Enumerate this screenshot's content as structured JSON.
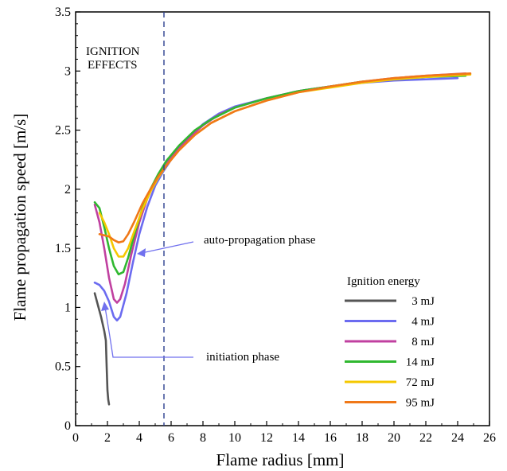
{
  "chart_data": {
    "type": "line",
    "xlabel": "Flame radius [mm]",
    "ylabel": "Flame propagation speed [m/s]",
    "xlim": [
      0,
      26
    ],
    "ylim": [
      0,
      3.5
    ],
    "xticks": [
      "0",
      "2",
      "4",
      "6",
      "8",
      "10",
      "12",
      "14",
      "16",
      "18",
      "20",
      "22",
      "24",
      "26"
    ],
    "yticks": [
      "0",
      "0.5",
      "1",
      "1.5",
      "2",
      "2.5",
      "3",
      "3.5"
    ],
    "grid": false,
    "legend": {
      "title": "Ignition energy",
      "placement": "bottom-right"
    },
    "annotations": {
      "ignition_label_1": "IGNITION",
      "ignition_label_2": "EFFECTS",
      "ignition_line_x": 5.55,
      "auto_propagation": "auto-propagation phase",
      "initiation": "initiation phase"
    },
    "series": [
      {
        "name": "3 mJ",
        "color": "#555555",
        "points": [
          [
            1.2,
            1.12
          ],
          [
            1.4,
            1.02
          ],
          [
            1.6,
            0.92
          ],
          [
            1.8,
            0.8
          ],
          [
            1.9,
            0.72
          ],
          [
            1.95,
            0.5
          ],
          [
            2.0,
            0.3
          ],
          [
            2.05,
            0.22
          ],
          [
            2.1,
            0.18
          ]
        ]
      },
      {
        "name": "4 mJ",
        "color": "#6b6bf0",
        "points": [
          [
            1.2,
            1.21
          ],
          [
            1.5,
            1.19
          ],
          [
            1.8,
            1.14
          ],
          [
            2.1,
            1.05
          ],
          [
            2.4,
            0.92
          ],
          [
            2.6,
            0.89
          ],
          [
            2.8,
            0.92
          ],
          [
            3.2,
            1.12
          ],
          [
            3.6,
            1.38
          ],
          [
            4.0,
            1.62
          ],
          [
            4.5,
            1.85
          ],
          [
            5.0,
            2.03
          ],
          [
            5.5,
            2.15
          ],
          [
            6,
            2.25
          ],
          [
            7,
            2.42
          ],
          [
            8,
            2.55
          ],
          [
            9,
            2.64
          ],
          [
            10,
            2.7
          ],
          [
            12,
            2.77
          ],
          [
            14,
            2.83
          ],
          [
            16,
            2.87
          ],
          [
            18,
            2.9
          ],
          [
            20,
            2.92
          ],
          [
            22,
            2.93
          ],
          [
            24,
            2.94
          ]
        ]
      },
      {
        "name": "8 mJ",
        "color": "#c040a0",
        "points": [
          [
            1.2,
            1.87
          ],
          [
            1.5,
            1.72
          ],
          [
            1.8,
            1.5
          ],
          [
            2.1,
            1.25
          ],
          [
            2.4,
            1.07
          ],
          [
            2.6,
            1.04
          ],
          [
            2.8,
            1.07
          ],
          [
            3.1,
            1.2
          ],
          [
            3.5,
            1.45
          ],
          [
            4.0,
            1.72
          ],
          [
            4.5,
            1.92
          ],
          [
            5.0,
            2.07
          ],
          [
            5.5,
            2.18
          ],
          [
            6,
            2.27
          ],
          [
            7,
            2.42
          ],
          [
            8,
            2.54
          ],
          [
            9,
            2.63
          ],
          [
            10,
            2.69
          ],
          [
            12,
            2.77
          ],
          [
            14,
            2.83
          ],
          [
            16,
            2.87
          ],
          [
            18,
            2.91
          ],
          [
            20,
            2.94
          ],
          [
            22,
            2.96
          ],
          [
            24.5,
            2.98
          ]
        ]
      },
      {
        "name": "14 mJ",
        "color": "#30b830",
        "points": [
          [
            1.2,
            1.89
          ],
          [
            1.5,
            1.84
          ],
          [
            1.8,
            1.68
          ],
          [
            2.1,
            1.5
          ],
          [
            2.4,
            1.35
          ],
          [
            2.7,
            1.28
          ],
          [
            3.0,
            1.3
          ],
          [
            3.3,
            1.42
          ],
          [
            3.7,
            1.62
          ],
          [
            4.2,
            1.84
          ],
          [
            4.7,
            2.0
          ],
          [
            5.2,
            2.13
          ],
          [
            5.7,
            2.24
          ],
          [
            6.5,
            2.37
          ],
          [
            7.5,
            2.5
          ],
          [
            8.5,
            2.59
          ],
          [
            10,
            2.69
          ],
          [
            12,
            2.77
          ],
          [
            14,
            2.83
          ],
          [
            16,
            2.87
          ],
          [
            18,
            2.91
          ],
          [
            20,
            2.93
          ],
          [
            22,
            2.95
          ],
          [
            24.5,
            2.96
          ]
        ]
      },
      {
        "name": "72 mJ",
        "color": "#f5c800",
        "points": [
          [
            1.5,
            1.8
          ],
          [
            1.8,
            1.72
          ],
          [
            2.1,
            1.62
          ],
          [
            2.4,
            1.5
          ],
          [
            2.7,
            1.43
          ],
          [
            3.0,
            1.43
          ],
          [
            3.3,
            1.5
          ],
          [
            3.7,
            1.65
          ],
          [
            4.2,
            1.83
          ],
          [
            4.7,
            1.98
          ],
          [
            5.2,
            2.1
          ],
          [
            5.7,
            2.2
          ],
          [
            6.5,
            2.33
          ],
          [
            7.5,
            2.46
          ],
          [
            8.5,
            2.56
          ],
          [
            10,
            2.66
          ],
          [
            12,
            2.75
          ],
          [
            14,
            2.82
          ],
          [
            16,
            2.86
          ],
          [
            18,
            2.9
          ],
          [
            20,
            2.93
          ],
          [
            22,
            2.95
          ],
          [
            24.8,
            2.97
          ]
        ]
      },
      {
        "name": "95 mJ",
        "color": "#f07818",
        "points": [
          [
            1.5,
            1.62
          ],
          [
            1.8,
            1.61
          ],
          [
            2.1,
            1.6
          ],
          [
            2.4,
            1.57
          ],
          [
            2.7,
            1.55
          ],
          [
            3.0,
            1.56
          ],
          [
            3.3,
            1.62
          ],
          [
            3.7,
            1.73
          ],
          [
            4.2,
            1.88
          ],
          [
            4.7,
            2.0
          ],
          [
            5.2,
            2.11
          ],
          [
            5.7,
            2.2
          ],
          [
            6.5,
            2.33
          ],
          [
            7.5,
            2.46
          ],
          [
            8.5,
            2.56
          ],
          [
            10,
            2.66
          ],
          [
            12,
            2.75
          ],
          [
            14,
            2.82
          ],
          [
            16,
            2.87
          ],
          [
            18,
            2.91
          ],
          [
            20,
            2.94
          ],
          [
            22,
            2.96
          ],
          [
            24.8,
            2.98
          ]
        ]
      }
    ]
  }
}
